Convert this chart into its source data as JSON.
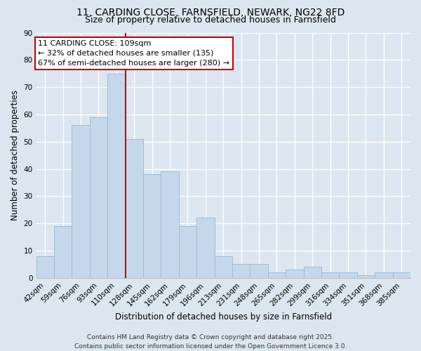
{
  "title": "11, CARDING CLOSE, FARNSFIELD, NEWARK, NG22 8FD",
  "subtitle": "Size of property relative to detached houses in Farnsfield",
  "xlabel": "Distribution of detached houses by size in Farnsfield",
  "ylabel": "Number of detached properties",
  "bar_labels": [
    "42sqm",
    "59sqm",
    "76sqm",
    "93sqm",
    "110sqm",
    "128sqm",
    "145sqm",
    "162sqm",
    "179sqm",
    "196sqm",
    "213sqm",
    "231sqm",
    "248sqm",
    "265sqm",
    "282sqm",
    "299sqm",
    "316sqm",
    "334sqm",
    "351sqm",
    "368sqm",
    "385sqm"
  ],
  "bar_values": [
    8,
    19,
    56,
    59,
    75,
    51,
    38,
    39,
    19,
    22,
    8,
    5,
    5,
    2,
    3,
    4,
    2,
    2,
    1,
    2,
    2
  ],
  "bar_color": "#c5d8eb",
  "bar_edgecolor": "#9ab8d0",
  "vline_x_index": 4,
  "vline_color": "#cc0000",
  "annotation_text": "11 CARDING CLOSE: 109sqm\n← 32% of detached houses are smaller (135)\n67% of semi-detached houses are larger (280) →",
  "annotation_box_color": "#ffffff",
  "annotation_box_edgecolor": "#cc0000",
  "ylim": [
    0,
    90
  ],
  "yticks": [
    0,
    10,
    20,
    30,
    40,
    50,
    60,
    70,
    80,
    90
  ],
  "footer": "Contains HM Land Registry data © Crown copyright and database right 2025.\nContains public sector information licensed under the Open Government Licence 3.0.",
  "background_color": "#dce6f0",
  "plot_background_color": "#dce6f0",
  "grid_color": "#ffffff",
  "title_fontsize": 10,
  "subtitle_fontsize": 9,
  "axis_fontsize": 8.5,
  "tick_fontsize": 7.5,
  "annotation_fontsize": 8,
  "footer_fontsize": 6.5
}
